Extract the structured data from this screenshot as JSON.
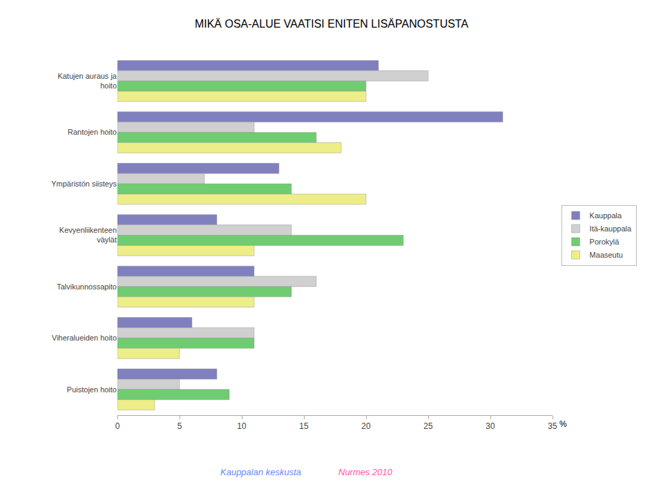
{
  "chart_data": {
    "type": "bar",
    "orientation": "horizontal",
    "title": "MIKÄ OSA-ALUE VAATISI ENITEN LISÄPANOSTUSTA",
    "xlabel": "%",
    "categories": [
      "Katujen auraus ja\nhoito",
      "Rantojen hoito",
      "Ympäristön siisteys",
      "Kevyenliikenteen\nväylät",
      "Talvikunnossapito",
      "Viheralueiden hoito",
      "Puistojen hoito"
    ],
    "series": [
      {
        "name": "Kauppala",
        "color": "#8080bf",
        "values": [
          21,
          31,
          13,
          8,
          11,
          6,
          8
        ]
      },
      {
        "name": "Itä-kauppala",
        "color": "#d0d0d0",
        "values": [
          25,
          11,
          7,
          14,
          16,
          11,
          5
        ]
      },
      {
        "name": "Porokylä",
        "color": "#70cc70",
        "values": [
          20,
          16,
          14,
          23,
          14,
          11,
          9
        ]
      },
      {
        "name": "Maaseutu",
        "color": "#eeee88",
        "values": [
          20,
          18,
          20,
          11,
          11,
          5,
          3
        ]
      }
    ],
    "xlim": [
      0,
      35
    ],
    "xticks": [
      0,
      5,
      10,
      15,
      20,
      25,
      30,
      35
    ],
    "grid": false,
    "legend": "right",
    "annotations": [
      {
        "text": "Kauppalan keskusta",
        "color": "#6688ff"
      },
      {
        "text": "Nurmes 2010",
        "color": "#ff55aa"
      }
    ]
  }
}
